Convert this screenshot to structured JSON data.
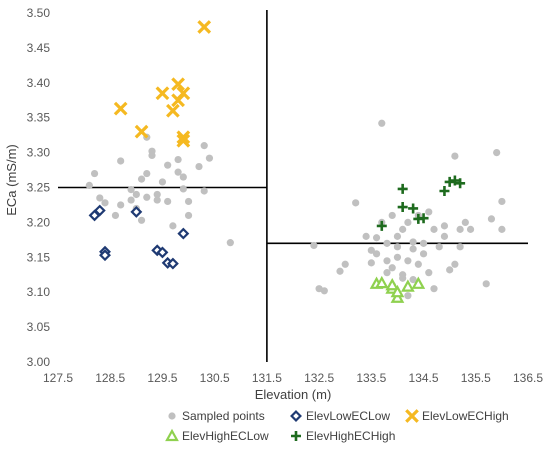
{
  "chart_data": {
    "type": "scatter",
    "title": "",
    "xlabel": "Elevation (m)",
    "ylabel": "ECa (mS/m)",
    "xlim": [
      127.5,
      136.5
    ],
    "ylim": [
      3.0,
      3.5
    ],
    "x_ticks": [
      127.5,
      128.5,
      129.5,
      130.5,
      131.5,
      132.5,
      133.5,
      134.5,
      135.5,
      136.5
    ],
    "y_ticks": [
      3.0,
      3.05,
      3.1,
      3.15,
      3.2,
      3.25,
      3.3,
      3.35,
      3.4,
      3.45,
      3.5
    ],
    "x_tick_labels": [
      "127.5",
      "128.5",
      "129.5",
      "130.5",
      "131.5",
      "132.5",
      "133.5",
      "134.5",
      "135.5",
      "136.5"
    ],
    "y_tick_labels": [
      "3.00",
      "3.05",
      "3.10",
      "3.15",
      "3.20",
      "3.25",
      "3.30",
      "3.35",
      "3.40",
      "3.45",
      "3.50"
    ],
    "grid": false,
    "legend_position": "bottom",
    "reference_lines": [
      {
        "orientation": "vertical",
        "x": 131.5
      },
      {
        "orientation": "horizontal",
        "y": 3.25,
        "x_range": [
          127.5,
          131.5
        ]
      },
      {
        "orientation": "horizontal",
        "y": 3.17,
        "x_range": [
          131.5,
          136.5
        ]
      }
    ],
    "series": [
      {
        "name": "Sampled points",
        "marker": "circle",
        "color": "#c0c0c0",
        "points": [
          [
            128.1,
            3.253
          ],
          [
            128.2,
            3.27
          ],
          [
            128.3,
            3.235
          ],
          [
            128.4,
            3.228
          ],
          [
            128.7,
            3.288
          ],
          [
            128.9,
            3.247
          ],
          [
            128.9,
            3.232
          ],
          [
            129.0,
            3.24
          ],
          [
            129.1,
            3.262
          ],
          [
            129.2,
            3.27
          ],
          [
            129.2,
            3.236
          ],
          [
            129.3,
            3.302
          ],
          [
            129.3,
            3.296
          ],
          [
            129.4,
            3.24
          ],
          [
            129.5,
            3.258
          ],
          [
            129.6,
            3.282
          ],
          [
            129.6,
            3.23
          ],
          [
            129.8,
            3.29
          ],
          [
            129.8,
            3.272
          ],
          [
            129.9,
            3.265
          ],
          [
            129.9,
            3.248
          ],
          [
            130.0,
            3.23
          ],
          [
            130.0,
            3.21
          ],
          [
            130.2,
            3.28
          ],
          [
            130.3,
            3.31
          ],
          [
            130.4,
            3.292
          ],
          [
            130.3,
            3.245
          ],
          [
            128.7,
            3.225
          ],
          [
            129.0,
            3.22
          ],
          [
            129.1,
            3.203
          ],
          [
            129.4,
            3.232
          ],
          [
            129.2,
            3.322
          ],
          [
            130.8,
            3.171
          ],
          [
            128.6,
            3.21
          ],
          [
            129.7,
            3.195
          ],
          [
            132.4,
            3.167
          ],
          [
            132.5,
            3.105
          ],
          [
            132.6,
            3.102
          ],
          [
            132.9,
            3.13
          ],
          [
            133.0,
            3.14
          ],
          [
            133.2,
            3.228
          ],
          [
            133.5,
            3.16
          ],
          [
            133.6,
            3.178
          ],
          [
            133.6,
            3.155
          ],
          [
            133.7,
            3.342
          ],
          [
            133.7,
            3.2
          ],
          [
            133.8,
            3.17
          ],
          [
            133.8,
            3.145
          ],
          [
            133.8,
            3.128
          ],
          [
            133.9,
            3.135
          ],
          [
            133.9,
            3.21
          ],
          [
            134.0,
            3.165
          ],
          [
            134.0,
            3.18
          ],
          [
            134.0,
            3.15
          ],
          [
            134.1,
            3.19
          ],
          [
            134.1,
            3.125
          ],
          [
            134.1,
            3.12
          ],
          [
            134.2,
            3.145
          ],
          [
            134.2,
            3.2
          ],
          [
            134.3,
            3.172
          ],
          [
            134.3,
            3.162
          ],
          [
            134.3,
            3.118
          ],
          [
            134.4,
            3.14
          ],
          [
            134.4,
            3.21
          ],
          [
            134.5,
            3.17
          ],
          [
            134.5,
            3.155
          ],
          [
            134.6,
            3.215
          ],
          [
            134.7,
            3.19
          ],
          [
            134.8,
            3.165
          ],
          [
            134.9,
            3.18
          ],
          [
            135.0,
            3.132
          ],
          [
            135.1,
            3.295
          ],
          [
            135.1,
            3.14
          ],
          [
            135.2,
            3.19
          ],
          [
            135.2,
            3.165
          ],
          [
            135.3,
            3.2
          ],
          [
            135.4,
            3.19
          ],
          [
            135.7,
            3.112
          ],
          [
            135.8,
            3.205
          ],
          [
            135.9,
            3.3
          ],
          [
            136.0,
            3.23
          ],
          [
            136.0,
            3.19
          ],
          [
            133.5,
            3.142
          ],
          [
            134.6,
            3.128
          ],
          [
            133.9,
            3.11
          ],
          [
            134.7,
            3.105
          ],
          [
            134.2,
            3.095
          ],
          [
            133.4,
            3.18
          ],
          [
            134.9,
            3.195
          ]
        ]
      },
      {
        "name": "ElevLowECLow",
        "marker": "diamond",
        "color": "#1f3a73",
        "points": [
          [
            128.2,
            3.21
          ],
          [
            128.3,
            3.217
          ],
          [
            128.4,
            3.158
          ],
          [
            128.4,
            3.153
          ],
          [
            129.0,
            3.215
          ],
          [
            129.4,
            3.16
          ],
          [
            129.5,
            3.157
          ],
          [
            129.6,
            3.142
          ],
          [
            129.7,
            3.141
          ],
          [
            129.9,
            3.184
          ]
        ]
      },
      {
        "name": "ElevLowECHigh",
        "marker": "x",
        "color": "#f5b921",
        "points": [
          [
            128.7,
            3.363
          ],
          [
            129.1,
            3.33
          ],
          [
            129.5,
            3.385
          ],
          [
            129.7,
            3.36
          ],
          [
            129.8,
            3.398
          ],
          [
            129.8,
            3.375
          ],
          [
            129.9,
            3.385
          ],
          [
            129.9,
            3.322
          ],
          [
            129.9,
            3.317
          ],
          [
            130.3,
            3.48
          ]
        ]
      },
      {
        "name": "ElevHighECLow",
        "marker": "triangle",
        "color": "#8fd14f",
        "points": [
          [
            133.6,
            3.112
          ],
          [
            133.7,
            3.113
          ],
          [
            133.9,
            3.105
          ],
          [
            133.9,
            3.11
          ],
          [
            134.0,
            3.092
          ],
          [
            134.0,
            3.1
          ],
          [
            134.2,
            3.108
          ],
          [
            134.4,
            3.112
          ]
        ]
      },
      {
        "name": "ElevHighECHigh",
        "marker": "plus",
        "color": "#1e6b1e",
        "points": [
          [
            133.7,
            3.195
          ],
          [
            134.1,
            3.248
          ],
          [
            134.1,
            3.222
          ],
          [
            134.3,
            3.22
          ],
          [
            134.4,
            3.205
          ],
          [
            134.5,
            3.206
          ],
          [
            134.9,
            3.245
          ],
          [
            135.0,
            3.258
          ],
          [
            135.1,
            3.26
          ],
          [
            135.2,
            3.256
          ]
        ]
      }
    ]
  }
}
